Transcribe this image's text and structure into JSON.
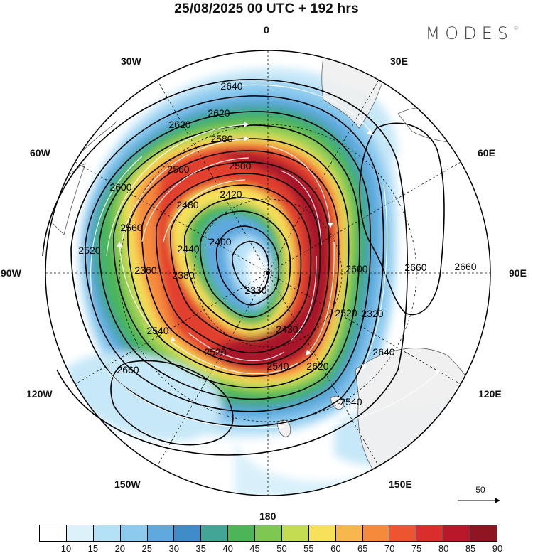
{
  "title": "25/08/2025  00 UTC  + 192 hrs",
  "logo": "MODES",
  "logo_mark": "©",
  "longitudes": {
    "n0": "0",
    "n30e": "30E",
    "n60e": "60E",
    "n90e": "90E",
    "n120e": "120E",
    "n150e": "150E",
    "n180": "180",
    "n150w": "150W",
    "n120w": "120W",
    "n90w": "90W",
    "n60w": "60W",
    "n30w": "30W"
  },
  "contour_labels": [
    "2640",
    "2620",
    "2620",
    "2580",
    "2560",
    "2600",
    "2500",
    "2480",
    "2420",
    "2560",
    "2400",
    "2520",
    "2440",
    "2360",
    "2380",
    "2330",
    "2430",
    "2540",
    "2520",
    "2540",
    "2620",
    "2660",
    "2660",
    "2660",
    "2600",
    "2520",
    "2320",
    "2640",
    "2540"
  ],
  "vector_reference": {
    "value": "50"
  },
  "colorbar": {
    "colors": [
      "#ffffff",
      "#ddf1fb",
      "#b5e1f7",
      "#8ccaee",
      "#5fa9df",
      "#3f8cc8",
      "#42a596",
      "#4bb558",
      "#7ec852",
      "#c4dc52",
      "#f7e15a",
      "#f8b74d",
      "#f58a3d",
      "#ec5530",
      "#d92e2b",
      "#b8182a",
      "#8f1522"
    ],
    "tick_labels": [
      "10",
      "15",
      "20",
      "25",
      "30",
      "35",
      "40",
      "45",
      "50",
      "55",
      "60",
      "65",
      "70",
      "75",
      "80",
      "85",
      "90"
    ]
  }
}
